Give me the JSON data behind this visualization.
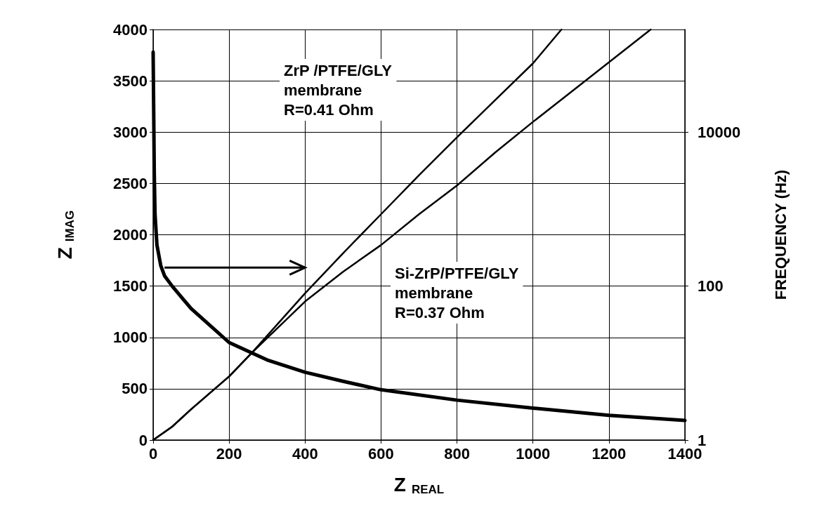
{
  "chart_data": {
    "type": "line",
    "xlabel": "Z$_{REAL}$",
    "ylabel": "Z$_{IMAG}$",
    "y2label": "FREQUENCY (Hz)",
    "annotations": [
      "ZrP /PTFE/GLY\nmembrane\nR=0.41 Ohm",
      "Si-ZrP/PTFE/GLY\nmembrane\nR=0.37 Ohm"
    ],
    "series": [
      {
        "color": "#000000",
        "x": [
          0,
          50,
          100,
          200,
          260,
          400,
          500,
          600,
          700,
          800,
          900,
          1000,
          1075
        ],
        "values": [
          0,
          130,
          300,
          620,
          850,
          1430,
          1820,
          2200,
          2580,
          2950,
          3310,
          3670,
          4000
        ]
      },
      {
        "color": "#000000",
        "x": [
          0,
          50,
          100,
          200,
          260,
          400,
          500,
          600,
          700,
          800,
          900,
          1000,
          1100,
          1200,
          1310
        ],
        "values": [
          0,
          130,
          300,
          620,
          850,
          1350,
          1640,
          1900,
          2200,
          2480,
          2800,
          3100,
          3390,
          3680,
          4000
        ]
      },
      {
        "color": "#000000",
        "axis": "y2",
        "x": [
          0,
          2,
          3,
          5,
          10,
          20,
          30,
          50,
          100,
          200,
          300,
          400,
          500,
          600,
          800,
          1000,
          1200,
          1400
        ],
        "values": [
          109600,
          10000,
          2930,
          858,
          342,
          185,
          136,
          100,
          51,
          18.5,
          11,
          7.6,
          5.8,
          4.5,
          3.3,
          2.6,
          2.1,
          1.8
        ]
      }
    ],
    "xlim": [
      0,
      1400
    ],
    "xticks": [
      0,
      200,
      400,
      600,
      800,
      1000,
      1200,
      1400
    ],
    "ylim": [
      0,
      4000
    ],
    "yticks": [
      0,
      500,
      1000,
      1500,
      2000,
      2500,
      3000,
      3500,
      4000
    ],
    "y2lim": [
      1,
      215443
    ],
    "y2ticks": [
      1,
      100,
      10000
    ],
    "log": "y2",
    "grid": true,
    "marker": "none",
    "line_style": "solid"
  }
}
